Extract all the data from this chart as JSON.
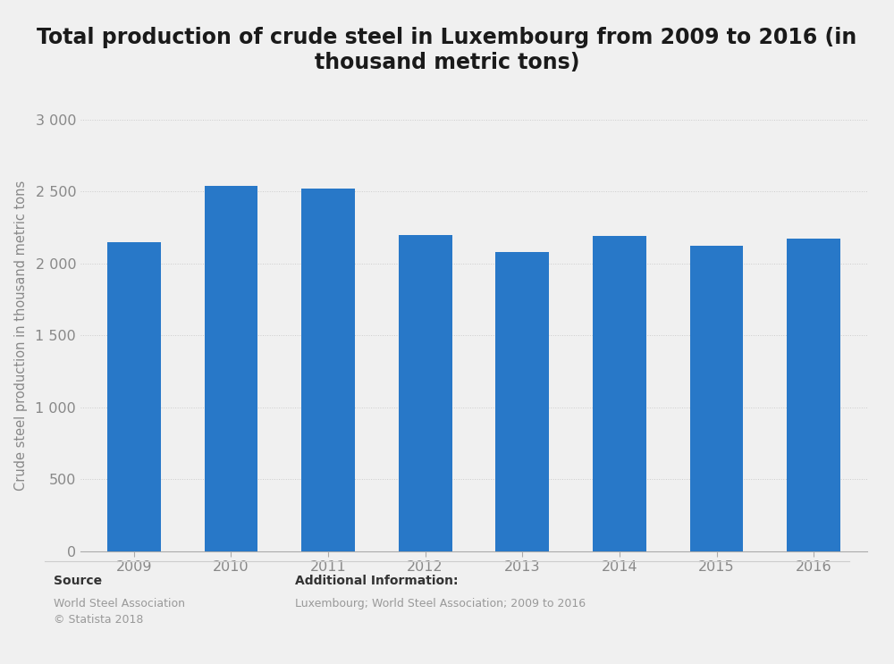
{
  "title": "Total production of crude steel in Luxembourg from 2009 to 2016 (in\nthousand metric tons)",
  "ylabel": "Crude steel production in thousand metric tons",
  "years": [
    2009,
    2010,
    2011,
    2012,
    2013,
    2014,
    2015,
    2016
  ],
  "values": [
    2150,
    2540,
    2520,
    2200,
    2080,
    2190,
    2120,
    2170
  ],
  "bar_color": "#2878C8",
  "background_color": "#f0f0f0",
  "plot_bg_color": "#f0f0f0",
  "ylim": [
    0,
    3000
  ],
  "yticks": [
    0,
    500,
    1000,
    1500,
    2000,
    2500,
    3000
  ],
  "ytick_labels": [
    "0",
    "500",
    "1 000",
    "1 500",
    "2 000",
    "2 500",
    "3 000"
  ],
  "title_fontsize": 17,
  "axis_label_fontsize": 10.5,
  "tick_fontsize": 11.5,
  "source_text": "Source",
  "source_detail": "World Steel Association\n© Statista 2018",
  "additional_info_label": "Additional Information:",
  "additional_info_detail": "Luxembourg; World Steel Association; 2009 to 2016",
  "footer_fontsize": 10,
  "bar_width": 0.55
}
